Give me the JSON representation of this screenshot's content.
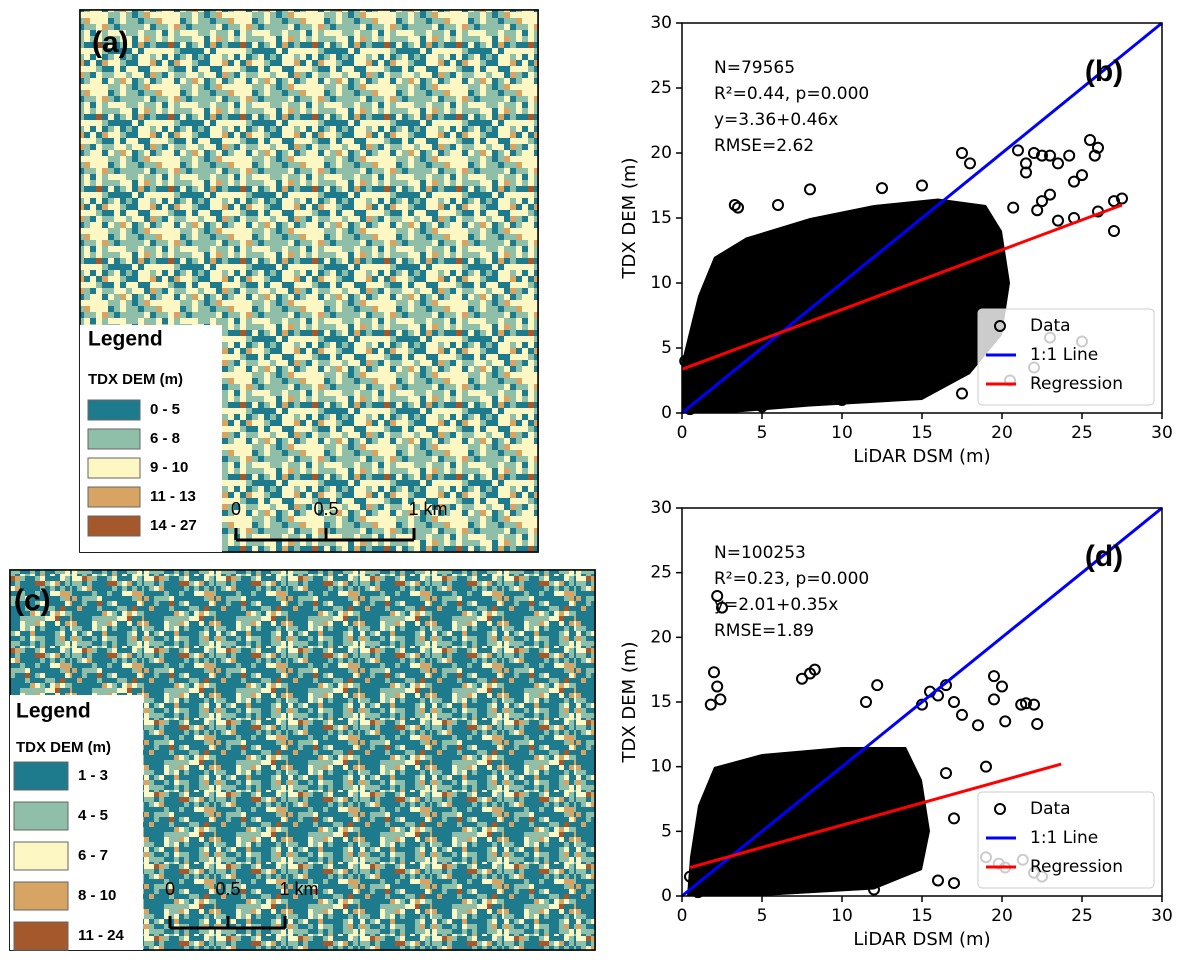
{
  "maps": [
    {
      "panel_label": "(a)",
      "legend_title": "Legend",
      "legend_subtitle": "TDX DEM (m)",
      "legend": [
        {
          "label": "0 - 5",
          "color": "#1e7b8e"
        },
        {
          "label": "6 - 8",
          "color": "#8fbfa9"
        },
        {
          "label": "9 - 10",
          "color": "#fdf7c4"
        },
        {
          "label": "11 - 13",
          "color": "#d7a463"
        },
        {
          "label": "14 - 27",
          "color": "#a4582b"
        }
      ],
      "scale_labels": [
        "0",
        "0.5",
        "1 km"
      ]
    },
    {
      "panel_label": "(c)",
      "legend_title": "Legend",
      "legend_subtitle": "TDX DEM (m)",
      "legend": [
        {
          "label": "1 - 3",
          "color": "#1e7b8e"
        },
        {
          "label": "4 - 5",
          "color": "#8fbfa9"
        },
        {
          "label": "6 - 7",
          "color": "#fdf7c4"
        },
        {
          "label": "8 - 10",
          "color": "#d7a463"
        },
        {
          "label": "11 - 24",
          "color": "#a4582b"
        }
      ],
      "scale_labels": [
        "0",
        "0.5",
        "1 km"
      ]
    }
  ],
  "chart_data": [
    {
      "type": "scatter",
      "panel_label": "(b)",
      "x_label": "LiDAR DSM (m)",
      "y_label": "TDX DEM (m)",
      "stats": [
        "N=79565",
        "R²=0.44, p=0.000",
        "y=3.36+0.46x",
        "RMSE=2.62"
      ],
      "xlim": [
        0,
        30
      ],
      "ylim": [
        0,
        30
      ],
      "xticks": [
        0,
        5,
        10,
        15,
        20,
        25,
        30
      ],
      "yticks": [
        0,
        5,
        10,
        15,
        20,
        25,
        30
      ],
      "legend_loc": "lower right",
      "series": [
        {
          "name": "Data",
          "color": "#000000",
          "x": [
            17.5,
            18,
            21,
            22,
            22.5,
            23,
            23.5,
            24.2,
            25.5,
            26,
            25.8,
            21.5,
            21.5,
            24.5,
            25,
            23,
            22.5,
            27,
            27.5,
            26,
            24.5,
            23.5,
            20.7,
            22.2,
            15,
            12.5,
            8,
            6,
            3.5,
            3.3,
            17.5,
            22,
            25,
            23,
            20.5,
            0.2,
            0.5,
            10,
            5,
            27
          ],
          "y": [
            20,
            19.2,
            20.2,
            20,
            19.8,
            19.8,
            19.2,
            19.8,
            21,
            20.4,
            19.8,
            19.2,
            18.5,
            17.8,
            18.3,
            16.8,
            16.3,
            16.3,
            16.5,
            15.5,
            15,
            14.8,
            15.8,
            15.6,
            17.5,
            17.3,
            17.2,
            16,
            15.8,
            16,
            1.5,
            3.5,
            5.5,
            5.8,
            2.5,
            4,
            0.3,
            1,
            0.5,
            14
          ]
        },
        {
          "name": "1:1 Line",
          "color": "#0000ff",
          "x": [
            0,
            30
          ],
          "y": [
            0,
            30
          ]
        },
        {
          "name": "Regression",
          "color": "#ff0000",
          "x": [
            0,
            27.5
          ],
          "y": [
            3.36,
            16.0
          ]
        }
      ]
    },
    {
      "type": "scatter",
      "panel_label": "(d)",
      "x_label": "LiDAR DSM (m)",
      "y_label": "TDX DEM (m)",
      "stats": [
        "N=100253",
        "R²=0.23, p=0.000",
        "y=2.01+0.35x",
        "RMSE=1.89"
      ],
      "xlim": [
        0,
        30
      ],
      "ylim": [
        0,
        30
      ],
      "xticks": [
        0,
        5,
        10,
        15,
        20,
        25,
        30
      ],
      "yticks": [
        0,
        5,
        10,
        15,
        20,
        25,
        30
      ],
      "legend_loc": "lower right",
      "series": [
        {
          "name": "Data",
          "color": "#000000",
          "x": [
            2.2,
            2.5,
            2,
            2.2,
            2.4,
            1.8,
            8,
            8.3,
            7.5,
            12.2,
            11.5,
            15.5,
            16,
            16.5,
            15,
            17,
            17.5,
            18.5,
            19.5,
            20,
            20.2,
            19.5,
            21.2,
            21.5,
            22,
            22.2,
            19,
            16.5,
            17,
            19,
            19.8,
            20.2,
            21.3,
            22,
            22.5,
            16,
            17,
            12,
            1,
            0.5
          ],
          "y": [
            23.2,
            22.3,
            17.3,
            16.2,
            15.2,
            14.8,
            17.2,
            17.5,
            16.8,
            16.3,
            15,
            15.8,
            15.5,
            16.3,
            14.8,
            15,
            14,
            13.2,
            17,
            16.2,
            13.5,
            15.2,
            14.8,
            14.9,
            14.8,
            13.3,
            10,
            9.5,
            6,
            3,
            2.5,
            2.2,
            2.8,
            1.8,
            1.5,
            1.2,
            1,
            0.5,
            0.3,
            1.5
          ]
        },
        {
          "name": "1:1 Line",
          "color": "#0000ff",
          "x": [
            0,
            30
          ],
          "y": [
            0,
            30
          ]
        },
        {
          "name": "Regression",
          "color": "#ff0000",
          "x": [
            0.5,
            23.7
          ],
          "y": [
            2.2,
            10.2
          ]
        }
      ]
    }
  ]
}
